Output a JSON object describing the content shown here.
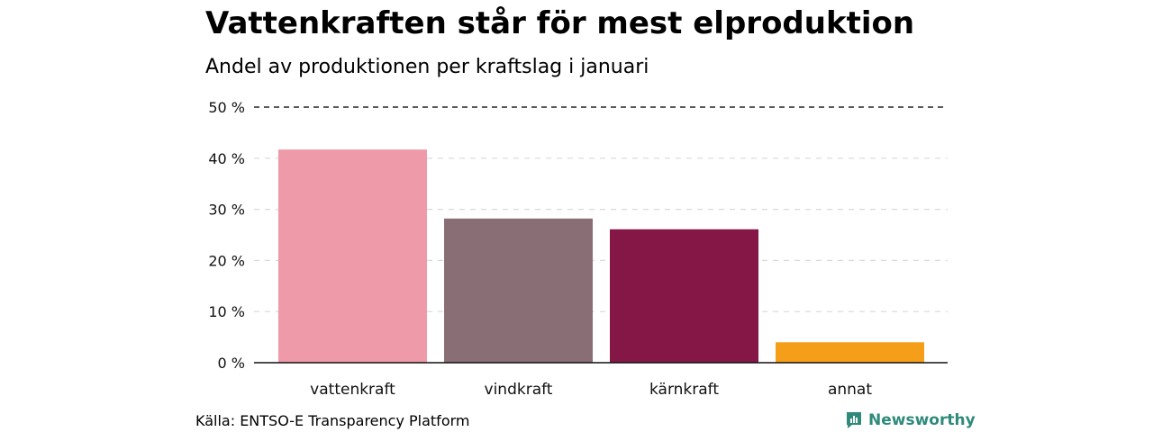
{
  "title": "Vattenkraften står för mest elproduktion",
  "subtitle": "Andel av produktionen per kraftslag i januari",
  "source": "Källa: ENTSO-E Transparency Platform",
  "brand": "Newsworthy",
  "chart_data": {
    "type": "bar",
    "categories": [
      "vattenkraft",
      "vindkraft",
      "kärnkraft",
      "annat"
    ],
    "values": [
      41.7,
      28.2,
      26.1,
      4.0
    ],
    "colors": [
      "#ee9aa8",
      "#8a6e75",
      "#851747",
      "#f59e1a"
    ],
    "ylim": [
      0,
      50
    ],
    "yticks": [
      0,
      10,
      20,
      30,
      40,
      50
    ],
    "ytick_labels": [
      "0 %",
      "10 %",
      "20 %",
      "30 %",
      "40 %",
      "50 %"
    ],
    "grid": true
  }
}
